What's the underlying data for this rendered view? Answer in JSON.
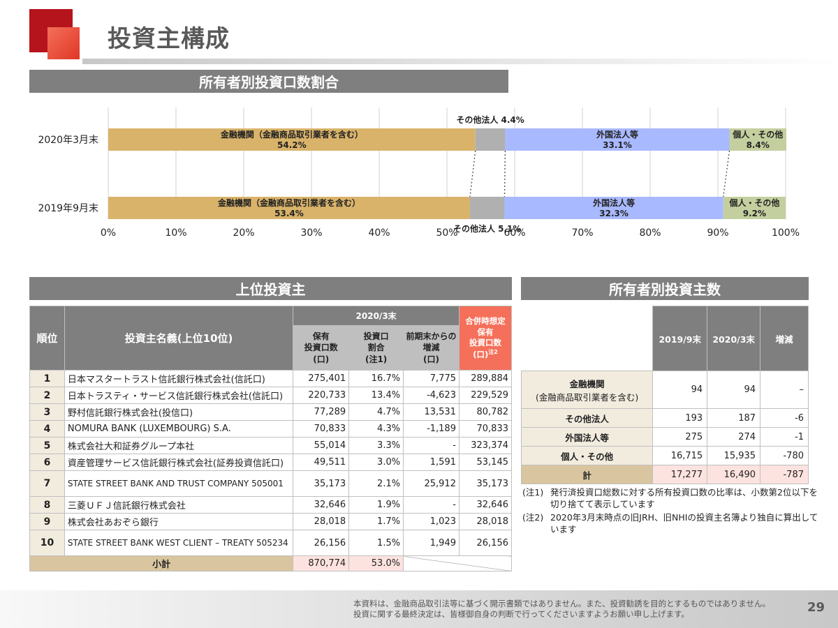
{
  "page": {
    "title": "投資主構成",
    "page_number": "29"
  },
  "sections": {
    "ratio": "所有者別投資口数割合",
    "top": "上位投資主",
    "count": "所有者別投資主数"
  },
  "chart_data": {
    "type": "bar",
    "orientation": "horizontal-stacked-100",
    "categories": [
      "2020年3月末",
      "2019年9月末"
    ],
    "series": [
      {
        "name": "金融機関（金融商品取引業者を含む）",
        "values": [
          54.2,
          53.4
        ],
        "color": "#d9b36a"
      },
      {
        "name": "その他法人",
        "values": [
          4.4,
          5.1
        ],
        "color": "#b0b0b0"
      },
      {
        "name": "外国法人等",
        "values": [
          33.1,
          32.3
        ],
        "color": "#a9b9ff"
      },
      {
        "name": "個人・その他",
        "values": [
          8.4,
          9.2
        ],
        "color": "#c4cf9f"
      }
    ],
    "value_labels": [
      [
        "54.2%",
        "4.4%",
        "33.1%",
        "8.4%"
      ],
      [
        "53.4%",
        "5.1%",
        "32.3%",
        "9.2%"
      ]
    ],
    "xlim": [
      0,
      100
    ],
    "xticks": [
      "0%",
      "10%",
      "20%",
      "30%",
      "40%",
      "50%",
      "60%",
      "70%",
      "80%",
      "90%",
      "100%"
    ],
    "grid": true,
    "legend": "none"
  },
  "top_table": {
    "headers": {
      "rank": "順位",
      "name": "投資主名義(上位10位)",
      "period": "2020/3末",
      "units": [
        "保有",
        "投資口数",
        "(口)"
      ],
      "ratio": [
        "投資口",
        "割合",
        "(注1)"
      ],
      "change": [
        "前期末からの",
        "増減",
        "(口)"
      ],
      "merge": [
        "合併時想定",
        "保有",
        "投資口数",
        "(口)"
      ],
      "merge_note": "注2"
    },
    "rows": [
      {
        "rank": "1",
        "name": "日本マスタートラスト信託銀行株式会社(信託口)",
        "units": "275,401",
        "ratio": "16.7%",
        "change": "7,775",
        "merge": "289,884"
      },
      {
        "rank": "2",
        "name": "日本トラスティ・サービス信託銀行株式会社(信託口)",
        "units": "220,733",
        "ratio": "13.4%",
        "change": "-4,623",
        "merge": "229,529"
      },
      {
        "rank": "3",
        "name": "野村信託銀行株式会社(投信口)",
        "units": "77,289",
        "ratio": "4.7%",
        "change": "13,531",
        "merge": "80,782"
      },
      {
        "rank": "4",
        "name": "NOMURA BANK (LUXEMBOURG) S.A.",
        "units": "70,833",
        "ratio": "4.3%",
        "change": "-1,189",
        "merge": "70,833"
      },
      {
        "rank": "5",
        "name": "株式会社大和証券グループ本社",
        "units": "55,014",
        "ratio": "3.3%",
        "change": "-",
        "merge": "323,374"
      },
      {
        "rank": "6",
        "name": "資産管理サービス信託銀行株式会社(証券投資信託口)",
        "units": "49,511",
        "ratio": "3.0%",
        "change": "1,591",
        "merge": "53,145"
      },
      {
        "rank": "7",
        "name": "STATE STREET BANK AND TRUST COMPANY 505001",
        "units": "35,173",
        "ratio": "2.1%",
        "change": "25,912",
        "merge": "35,173"
      },
      {
        "rank": "8",
        "name": "三菱ＵＦＪ信託銀行株式会社",
        "units": "32,646",
        "ratio": "1.9%",
        "change": "-",
        "merge": "32,646"
      },
      {
        "rank": "9",
        "name": "株式会社あおぞら銀行",
        "units": "28,018",
        "ratio": "1.7%",
        "change": "1,023",
        "merge": "28,018"
      },
      {
        "rank": "10",
        "name": "STATE STREET BANK WEST CLIENT – TREATY 505234",
        "units": "26,156",
        "ratio": "1.5%",
        "change": "1,949",
        "merge": "26,156"
      }
    ],
    "subtotal": {
      "label": "小計",
      "units": "870,774",
      "ratio": "53.0%"
    }
  },
  "count_table": {
    "headers": [
      "2019/9末",
      "2020/3末",
      "増減"
    ],
    "rows": [
      {
        "label": "金融機関",
        "sublabel": "(金融商品取引業者を含む)",
        "v1": "94",
        "v2": "94",
        "diff": "–"
      },
      {
        "label": "その他法人",
        "v1": "193",
        "v2": "187",
        "diff": "-6"
      },
      {
        "label": "外国法人等",
        "v1": "275",
        "v2": "274",
        "diff": "-1"
      },
      {
        "label": "個人・その他",
        "v1": "16,715",
        "v2": "15,935",
        "diff": "-780"
      }
    ],
    "total": {
      "label": "計",
      "v1": "17,277",
      "v2": "16,490",
      "diff": "-787"
    }
  },
  "notes": [
    {
      "mark": "(注1)",
      "text": "発行済投資口総数に対する所有投資口数の比率は、小数第2位以下を切り捨てて表示しています"
    },
    {
      "mark": "(注2)",
      "text": "2020年3月末時点の旧JRH、旧NHIの投資主名簿より独自に算出しています"
    }
  ],
  "footer": {
    "line1": "本資料は、金融商品取引法等に基づく開示書類ではありません。また、投資勧誘を目的とするものではありません。",
    "line2": "投資に関する最終決定は、皆様御自身の判断で行ってくださいますようお願い申し上げます。"
  }
}
